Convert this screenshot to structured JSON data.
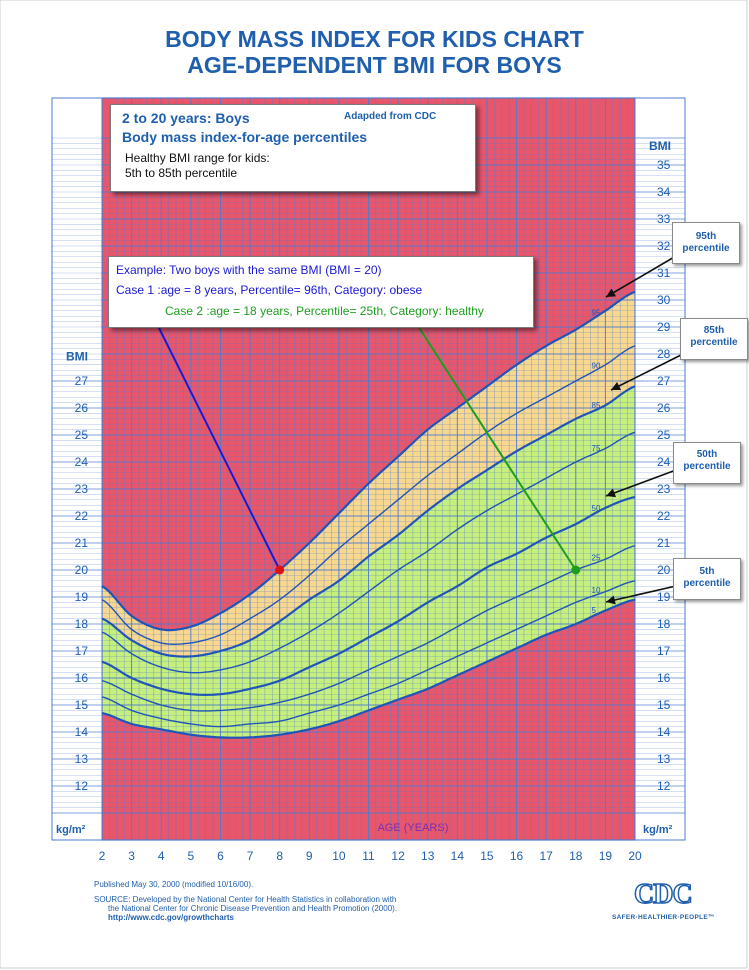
{
  "header": {
    "title": "BODY MASS INDEX FOR KIDS CHART",
    "subtitle": "AGE-DEPENDENT BMI FOR BOYS"
  },
  "info_box": {
    "line1": "2 to 20 years: Boys",
    "adapted": "Adapded from CDC",
    "line2": "Body mass index-for-age percentiles",
    "line3": "Healthy BMI range for kids:",
    "line4": "5th to 85th percentile"
  },
  "example_box": {
    "line1": "Example: Two boys with the same BMI (BMI = 20)",
    "case1": "Case 1 :age = 8 years, Percentile= 96th, Category: obese",
    "case2": "Case 2 :age = 18 years, Percentile= 25th, Category: healthy"
  },
  "callouts": {
    "p95": [
      "95th",
      "percentile"
    ],
    "p85": [
      "85th",
      "percentile"
    ],
    "p50": [
      "50th",
      "percentile"
    ],
    "p5": [
      "5th",
      "percentile"
    ]
  },
  "footer": {
    "published": "Published May 30, 2000 (modified 10/16/00).",
    "source1": "SOURCE: Developed by the National Center for Health Statistics in collaboration with",
    "source2": "the National Center for Chronic Disease Prevention and Health Promotion (2000).",
    "url": "http://www.cdc.gov/growthcharts",
    "logo": "CDC",
    "tagline": "SAFER·HEALTHIER·PEOPLE™"
  },
  "colors": {
    "obese_zone": "#e8566c",
    "overweight_zone": "#f8d78f",
    "healthy_zone": "#c6ef7e",
    "grid": "#4d7bd0",
    "curve": "#1f55b8",
    "text_blue": "#1f5fad",
    "case1": "#1a1ad6",
    "case2": "#1e9e1e",
    "case1_point": "#e01010",
    "case2_point": "#1e9e1e"
  },
  "chart_data": {
    "type": "line",
    "xlabel": "AGE (YEARS)",
    "ylabel": "BMI",
    "unit_label": "kg/m²",
    "xlim": [
      2,
      20
    ],
    "ylim": [
      11,
      36
    ],
    "x_ticks": [
      2,
      3,
      4,
      5,
      6,
      7,
      8,
      9,
      10,
      11,
      12,
      13,
      14,
      15,
      16,
      17,
      18,
      19,
      20
    ],
    "y_ticks_right": [
      12,
      13,
      14,
      15,
      16,
      17,
      18,
      19,
      20,
      21,
      22,
      23,
      24,
      25,
      26,
      27,
      28,
      29,
      30,
      31,
      32,
      33,
      34,
      35
    ],
    "y_ticks_left": [
      12,
      13,
      14,
      15,
      16,
      17,
      18,
      19,
      20,
      21,
      22,
      23,
      24,
      25,
      26,
      27
    ],
    "grid": true,
    "x": [
      2,
      3,
      4,
      5,
      6,
      7,
      8,
      9,
      10,
      11,
      12,
      13,
      14,
      15,
      16,
      17,
      18,
      19,
      20
    ],
    "series": [
      {
        "name": "95",
        "values": [
          19.4,
          18.3,
          17.8,
          17.9,
          18.4,
          19.1,
          20.0,
          21.0,
          22.1,
          23.2,
          24.2,
          25.2,
          26.0,
          26.8,
          27.6,
          28.3,
          28.9,
          29.6,
          30.3
        ]
      },
      {
        "name": "90",
        "values": [
          18.9,
          17.8,
          17.3,
          17.3,
          17.6,
          18.2,
          18.9,
          19.8,
          20.8,
          21.7,
          22.6,
          23.5,
          24.3,
          25.1,
          25.8,
          26.4,
          27.0,
          27.6,
          28.3
        ]
      },
      {
        "name": "85",
        "values": [
          18.2,
          17.4,
          16.9,
          16.8,
          17.0,
          17.4,
          18.1,
          18.9,
          19.6,
          20.5,
          21.3,
          22.2,
          23.0,
          23.7,
          24.4,
          25.0,
          25.6,
          26.1,
          26.8
        ]
      },
      {
        "name": "75",
        "values": [
          17.7,
          16.9,
          16.4,
          16.2,
          16.3,
          16.6,
          17.1,
          17.7,
          18.4,
          19.2,
          20.0,
          20.7,
          21.5,
          22.2,
          22.8,
          23.4,
          24.0,
          24.5,
          25.1
        ]
      },
      {
        "name": "50",
        "values": [
          16.6,
          16.0,
          15.6,
          15.4,
          15.4,
          15.6,
          15.9,
          16.4,
          16.9,
          17.5,
          18.1,
          18.8,
          19.4,
          20.1,
          20.6,
          21.2,
          21.7,
          22.3,
          22.7
        ]
      },
      {
        "name": "25",
        "values": [
          15.9,
          15.4,
          15.0,
          14.8,
          14.8,
          14.9,
          15.1,
          15.4,
          15.8,
          16.3,
          16.8,
          17.3,
          17.9,
          18.5,
          19.0,
          19.5,
          20.0,
          20.4,
          20.9
        ]
      },
      {
        "name": "10",
        "values": [
          15.3,
          14.8,
          14.5,
          14.3,
          14.2,
          14.3,
          14.4,
          14.7,
          15.0,
          15.4,
          15.8,
          16.3,
          16.8,
          17.3,
          17.8,
          18.3,
          18.8,
          19.2,
          19.6
        ]
      },
      {
        "name": "5",
        "values": [
          14.7,
          14.3,
          14.1,
          13.9,
          13.8,
          13.8,
          13.9,
          14.1,
          14.4,
          14.8,
          15.2,
          15.6,
          16.1,
          16.6,
          17.1,
          17.6,
          18.0,
          18.5,
          18.9
        ]
      }
    ],
    "curve_labels": [
      "95",
      "90",
      "85",
      "75",
      "50",
      "25",
      "10",
      "5"
    ],
    "points": [
      {
        "x": 8,
        "y": 20
      },
      {
        "x": 18,
        "y": 20
      }
    ]
  }
}
